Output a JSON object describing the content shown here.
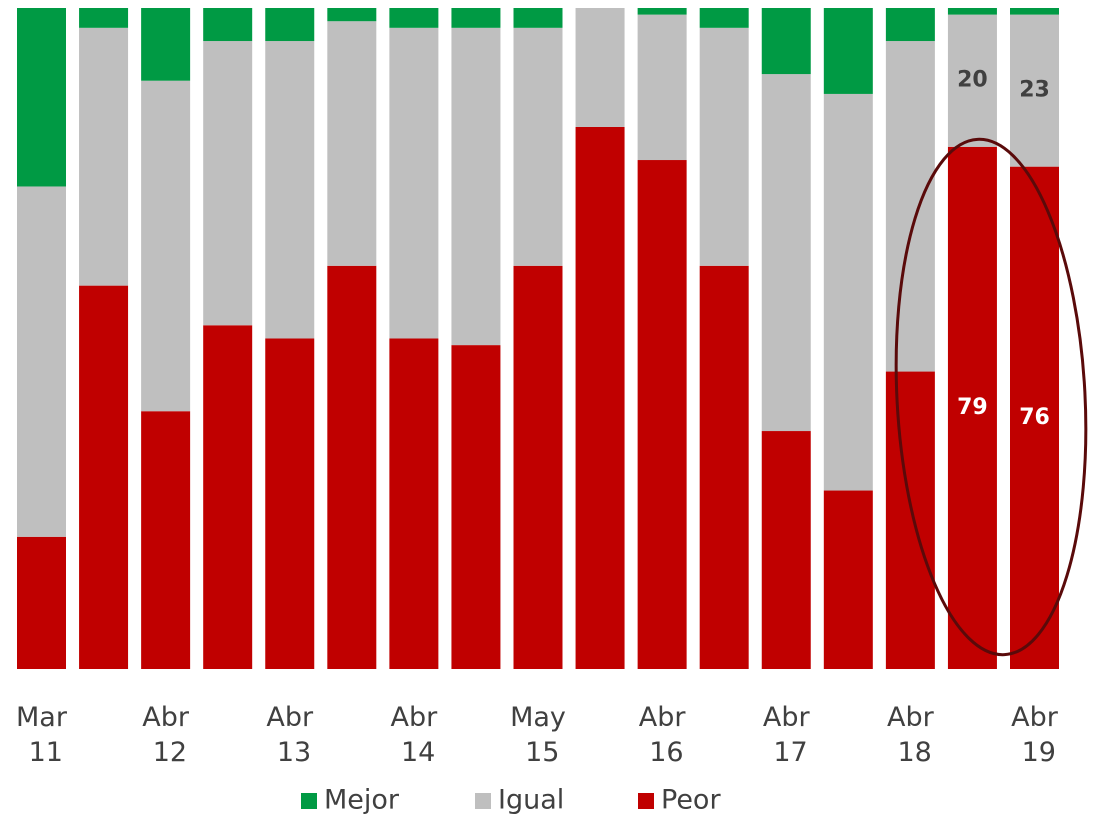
{
  "chart_data": {
    "type": "stacked_bar",
    "categories": [
      "Mar 11",
      null,
      "Abr 12",
      null,
      "Abr 13",
      null,
      "Abr 14",
      null,
      "May 15",
      null,
      "Abr 16",
      null,
      "Abr 17",
      null,
      "Abr 18",
      null,
      "Abr 19"
    ],
    "ylim": [
      0,
      100
    ],
    "legend": "bottom",
    "series": [
      {
        "name": "Mejor",
        "color": "#009a44",
        "label_color": "#404040",
        "values": [
          27,
          3,
          11,
          5,
          5,
          2,
          3,
          3,
          3,
          0,
          1,
          3,
          10,
          13,
          5,
          1,
          1
        ],
        "value_labels": [
          null,
          null,
          null,
          null,
          null,
          null,
          null,
          null,
          null,
          null,
          null,
          null,
          null,
          null,
          null,
          null,
          null
        ]
      },
      {
        "name": "Igual",
        "color": "#bfbfbf",
        "label_color": "#404040",
        "values": [
          53,
          39,
          50,
          43,
          45,
          37,
          47,
          48,
          36,
          18,
          22,
          36,
          54,
          60,
          50,
          20,
          23
        ],
        "value_labels": [
          null,
          null,
          null,
          null,
          null,
          null,
          null,
          null,
          null,
          null,
          null,
          null,
          null,
          null,
          null,
          "20",
          "23"
        ]
      },
      {
        "name": "Peor",
        "color": "#c00000",
        "label_color": "#ffffff",
        "values": [
          20,
          58,
          39,
          52,
          50,
          61,
          50,
          49,
          61,
          82,
          77,
          61,
          36,
          27,
          45,
          79,
          76
        ],
        "value_labels": [
          null,
          null,
          null,
          null,
          null,
          null,
          null,
          null,
          null,
          null,
          null,
          null,
          null,
          null,
          null,
          "79",
          "76"
        ]
      }
    ]
  }
}
